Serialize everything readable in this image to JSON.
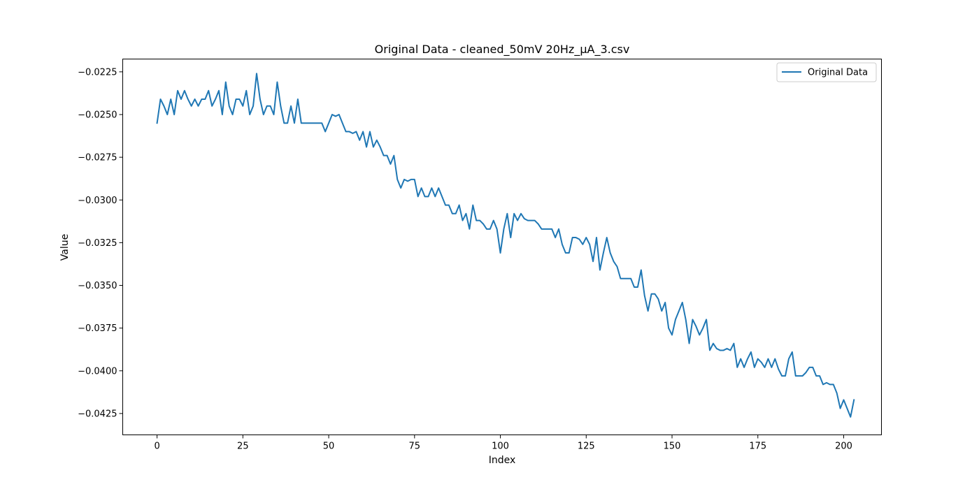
{
  "chart_data": {
    "type": "line",
    "title": "Original Data - cleaned_50mV 20Hz_µA_3.csv",
    "xlabel": "Index",
    "ylabel": "Value",
    "xlim": [
      -10,
      211
    ],
    "ylim": [
      -0.04375,
      -0.02175
    ],
    "xticks": [
      0,
      25,
      50,
      75,
      100,
      125,
      150,
      175,
      200
    ],
    "yticks": [
      -0.0225,
      -0.025,
      -0.0275,
      -0.03,
      -0.0325,
      -0.035,
      -0.0375,
      -0.04,
      -0.0425
    ],
    "ytick_labels": [
      "−0.0225",
      "−0.0250",
      "−0.0275",
      "−0.0300",
      "−0.0325",
      "−0.0350",
      "−0.0375",
      "−0.0400",
      "−0.0425"
    ],
    "grid": false,
    "legend_position": "top-right",
    "series": [
      {
        "name": "Original Data",
        "color": "#1f77b4",
        "values": [
          -0.0255,
          -0.0241,
          -0.0245,
          -0.025,
          -0.0241,
          -0.025,
          -0.0236,
          -0.0241,
          -0.0236,
          -0.0241,
          -0.0245,
          -0.0241,
          -0.0245,
          -0.0241,
          -0.0241,
          -0.0236,
          -0.0245,
          -0.0241,
          -0.0236,
          -0.025,
          -0.0231,
          -0.0245,
          -0.025,
          -0.0241,
          -0.0241,
          -0.0245,
          -0.0236,
          -0.025,
          -0.0245,
          -0.0226,
          -0.0241,
          -0.025,
          -0.0245,
          -0.0245,
          -0.025,
          -0.0231,
          -0.0245,
          -0.0255,
          -0.0255,
          -0.0245,
          -0.0255,
          -0.0241,
          -0.0255,
          -0.0255,
          -0.0255,
          -0.0255,
          -0.0255,
          -0.0255,
          -0.0255,
          -0.026,
          -0.0255,
          -0.025,
          -0.0251,
          -0.025,
          -0.0255,
          -0.026,
          -0.026,
          -0.0261,
          -0.026,
          -0.0265,
          -0.026,
          -0.0269,
          -0.026,
          -0.0269,
          -0.0265,
          -0.0269,
          -0.0274,
          -0.0274,
          -0.0279,
          -0.0274,
          -0.0288,
          -0.0293,
          -0.0288,
          -0.0289,
          -0.0288,
          -0.0288,
          -0.0298,
          -0.0293,
          -0.0298,
          -0.0298,
          -0.0293,
          -0.0298,
          -0.0293,
          -0.0298,
          -0.0303,
          -0.0303,
          -0.0308,
          -0.0308,
          -0.0303,
          -0.0312,
          -0.0308,
          -0.0317,
          -0.0303,
          -0.0312,
          -0.0312,
          -0.0314,
          -0.0317,
          -0.0317,
          -0.0312,
          -0.0317,
          -0.0331,
          -0.0317,
          -0.0308,
          -0.0322,
          -0.0308,
          -0.0312,
          -0.0308,
          -0.0311,
          -0.0312,
          -0.0312,
          -0.0312,
          -0.0314,
          -0.0317,
          -0.0317,
          -0.0317,
          -0.0317,
          -0.0322,
          -0.0317,
          -0.0326,
          -0.0331,
          -0.0331,
          -0.0322,
          -0.0322,
          -0.0323,
          -0.0326,
          -0.0322,
          -0.0326,
          -0.0336,
          -0.0322,
          -0.0341,
          -0.0331,
          -0.0322,
          -0.0331,
          -0.0336,
          -0.0339,
          -0.0346,
          -0.0346,
          -0.0346,
          -0.0346,
          -0.0351,
          -0.0351,
          -0.0341,
          -0.0356,
          -0.0365,
          -0.0355,
          -0.0355,
          -0.0358,
          -0.0365,
          -0.036,
          -0.0375,
          -0.0379,
          -0.037,
          -0.0365,
          -0.036,
          -0.037,
          -0.0384,
          -0.037,
          -0.0374,
          -0.0379,
          -0.0375,
          -0.037,
          -0.0388,
          -0.0384,
          -0.0387,
          -0.0388,
          -0.0388,
          -0.0387,
          -0.0388,
          -0.0384,
          -0.0398,
          -0.0393,
          -0.0398,
          -0.0393,
          -0.0389,
          -0.0398,
          -0.0393,
          -0.0395,
          -0.0398,
          -0.0393,
          -0.0398,
          -0.0393,
          -0.0399,
          -0.0403,
          -0.0403,
          -0.0393,
          -0.0389,
          -0.0403,
          -0.0403,
          -0.0403,
          -0.0401,
          -0.0398,
          -0.0398,
          -0.0403,
          -0.0403,
          -0.0408,
          -0.0407,
          -0.0408,
          -0.0408,
          -0.0413,
          -0.0422,
          -0.0417,
          -0.0422,
          -0.0427,
          -0.0417
        ]
      }
    ]
  }
}
